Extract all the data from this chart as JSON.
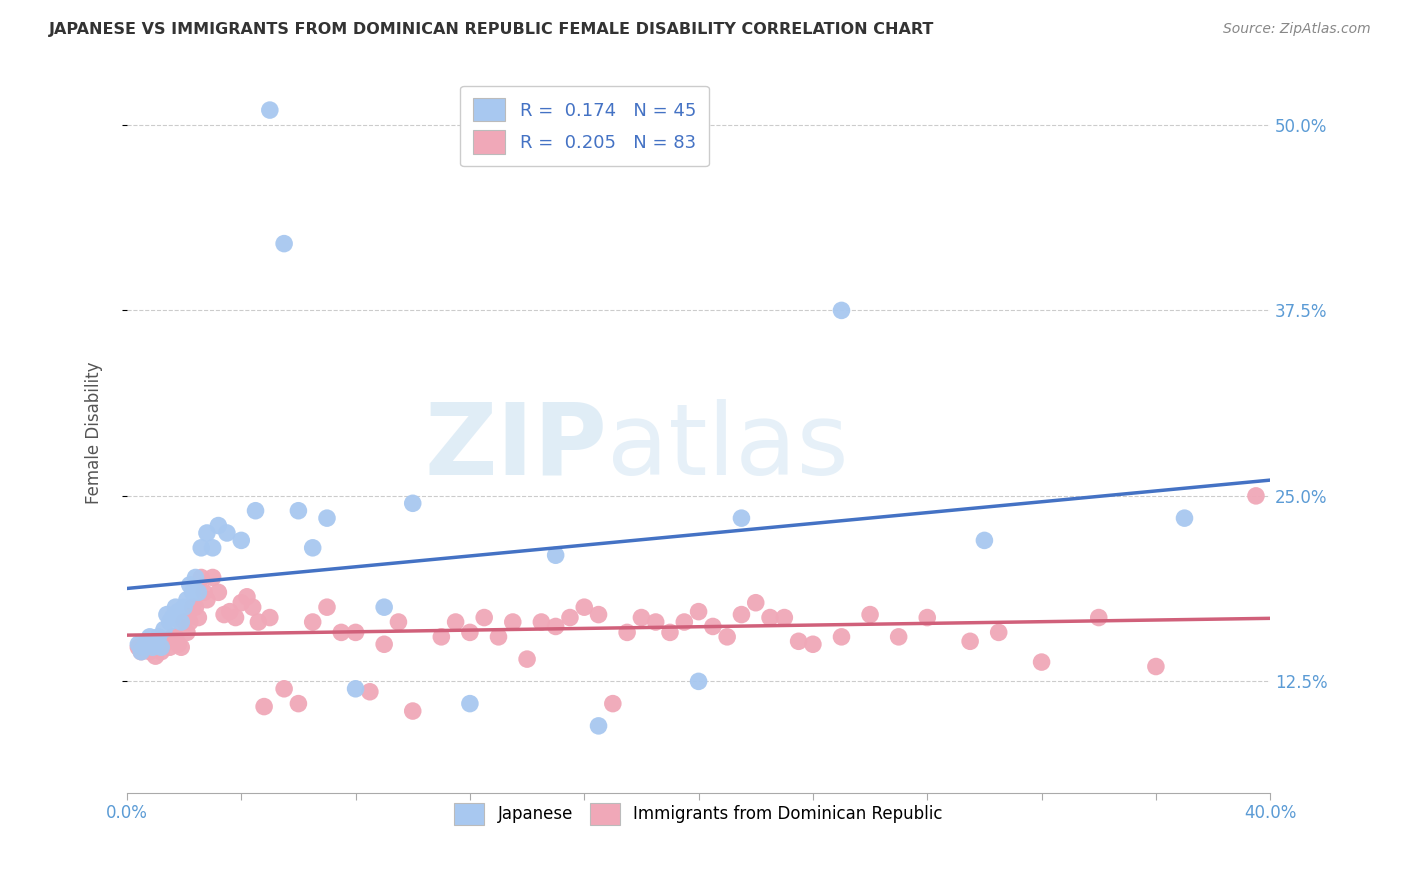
{
  "title": "JAPANESE VS IMMIGRANTS FROM DOMINICAN REPUBLIC FEMALE DISABILITY CORRELATION CHART",
  "source": "Source: ZipAtlas.com",
  "ylabel": "Female Disability",
  "xlim": [
    0.0,
    0.4
  ],
  "ylim": [
    0.05,
    0.535
  ],
  "ytick_vals": [
    0.125,
    0.25,
    0.375,
    0.5
  ],
  "ytick_labels": [
    "12.5%",
    "25.0%",
    "37.5%",
    "50.0%"
  ],
  "color_japanese": "#a8c8f0",
  "color_dominican": "#f0a8b8",
  "color_line_japanese": "#4472c4",
  "color_line_dominican": "#d0607a",
  "color_raxis": "#5b9bd5",
  "watermark_zip_color": "#c5dff0",
  "watermark_atlas_color": "#c5dff0",
  "japanese_x": [
    0.004,
    0.005,
    0.006,
    0.007,
    0.008,
    0.009,
    0.01,
    0.011,
    0.012,
    0.013,
    0.014,
    0.015,
    0.016,
    0.017,
    0.018,
    0.019,
    0.02,
    0.021,
    0.022,
    0.023,
    0.024,
    0.025,
    0.026,
    0.028,
    0.03,
    0.032,
    0.035,
    0.04,
    0.045,
    0.05,
    0.055,
    0.06,
    0.065,
    0.07,
    0.08,
    0.09,
    0.1,
    0.12,
    0.15,
    0.165,
    0.2,
    0.215,
    0.25,
    0.3,
    0.37
  ],
  "japanese_y": [
    0.15,
    0.145,
    0.148,
    0.152,
    0.155,
    0.148,
    0.15,
    0.155,
    0.148,
    0.16,
    0.17,
    0.165,
    0.168,
    0.175,
    0.172,
    0.165,
    0.175,
    0.18,
    0.19,
    0.185,
    0.195,
    0.185,
    0.215,
    0.225,
    0.215,
    0.23,
    0.225,
    0.22,
    0.24,
    0.51,
    0.42,
    0.24,
    0.215,
    0.235,
    0.12,
    0.175,
    0.245,
    0.11,
    0.21,
    0.095,
    0.125,
    0.235,
    0.375,
    0.22,
    0.235
  ],
  "dominican_x": [
    0.004,
    0.005,
    0.006,
    0.007,
    0.008,
    0.009,
    0.01,
    0.011,
    0.012,
    0.013,
    0.014,
    0.015,
    0.016,
    0.017,
    0.018,
    0.019,
    0.02,
    0.021,
    0.022,
    0.023,
    0.024,
    0.025,
    0.026,
    0.027,
    0.028,
    0.03,
    0.032,
    0.034,
    0.036,
    0.038,
    0.04,
    0.042,
    0.044,
    0.046,
    0.048,
    0.05,
    0.055,
    0.06,
    0.065,
    0.07,
    0.075,
    0.08,
    0.085,
    0.09,
    0.095,
    0.1,
    0.11,
    0.115,
    0.12,
    0.125,
    0.13,
    0.135,
    0.14,
    0.145,
    0.15,
    0.155,
    0.16,
    0.165,
    0.17,
    0.175,
    0.18,
    0.185,
    0.19,
    0.195,
    0.2,
    0.205,
    0.21,
    0.215,
    0.22,
    0.225,
    0.23,
    0.235,
    0.24,
    0.25,
    0.26,
    0.27,
    0.28,
    0.295,
    0.305,
    0.32,
    0.34,
    0.36,
    0.395
  ],
  "dominican_y": [
    0.148,
    0.145,
    0.148,
    0.15,
    0.145,
    0.148,
    0.142,
    0.148,
    0.145,
    0.15,
    0.152,
    0.148,
    0.155,
    0.155,
    0.15,
    0.148,
    0.165,
    0.158,
    0.165,
    0.175,
    0.175,
    0.168,
    0.195,
    0.185,
    0.18,
    0.195,
    0.185,
    0.17,
    0.172,
    0.168,
    0.178,
    0.182,
    0.175,
    0.165,
    0.108,
    0.168,
    0.12,
    0.11,
    0.165,
    0.175,
    0.158,
    0.158,
    0.118,
    0.15,
    0.165,
    0.105,
    0.155,
    0.165,
    0.158,
    0.168,
    0.155,
    0.165,
    0.14,
    0.165,
    0.162,
    0.168,
    0.175,
    0.17,
    0.11,
    0.158,
    0.168,
    0.165,
    0.158,
    0.165,
    0.172,
    0.162,
    0.155,
    0.17,
    0.178,
    0.168,
    0.168,
    0.152,
    0.15,
    0.155,
    0.17,
    0.155,
    0.168,
    0.152,
    0.158,
    0.138,
    0.168,
    0.135,
    0.25
  ]
}
